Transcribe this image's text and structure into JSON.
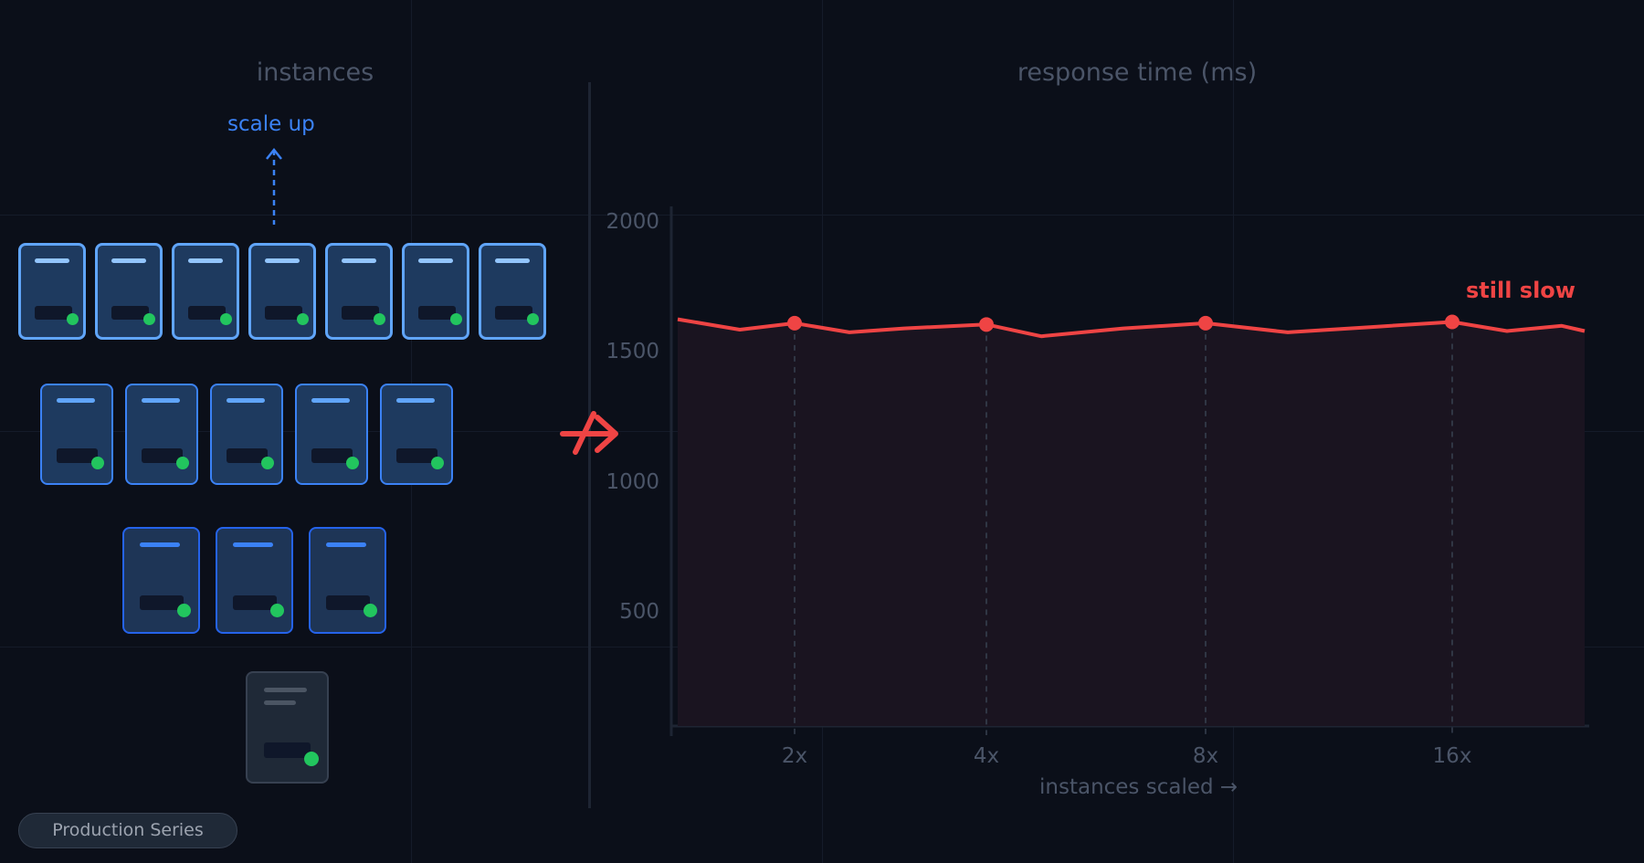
{
  "panels": {
    "left_title": "instances",
    "right_title": "response time (ms)"
  },
  "scale_label": "scale up",
  "server_rows": [
    7,
    5,
    3,
    1
  ],
  "chart_data": {
    "type": "line",
    "title": "response time (ms)",
    "xlabel": "instances scaled →",
    "ylabel": "",
    "x_ticks": [
      "2x",
      "4x",
      "8x",
      "16x"
    ],
    "y_ticks": [
      500,
      1000,
      1500,
      2000
    ],
    "ylim": [
      80,
      2020
    ],
    "series": [
      {
        "markers": [
          1625,
          1620,
          1625,
          1630
        ]
      }
    ],
    "annotation": "still slow",
    "colors": {
      "line": "#ef4444",
      "grid": "#1e2533",
      "text": "#4b5568"
    }
  },
  "colors": {
    "background": "#0b0f19",
    "server_border": "#60a5fa",
    "led": "#22c55e",
    "accent_red": "#ef4444",
    "accent_blue": "#3b82f6"
  },
  "icons": {
    "arrow": "not-arrow-icon",
    "up": "arrow-up-icon"
  },
  "badge_label": "Production Series"
}
